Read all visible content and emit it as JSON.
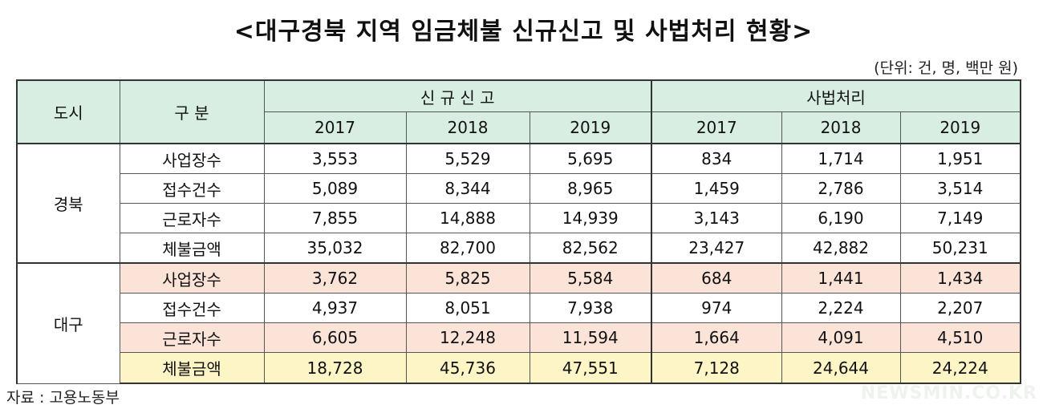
{
  "title": "<대구경북 지역 임금체불 신규신고 및 사법처리 현황>",
  "unit": "(단위: 건, 명, 백만 원)",
  "headers": {
    "city": "도시",
    "category": "구 분",
    "group_new": "신 규 신 고",
    "group_judicial": "사법처리",
    "years": [
      "2017",
      "2018",
      "2019",
      "2017",
      "2018",
      "2019"
    ]
  },
  "regions": [
    {
      "name": "경북",
      "rows": [
        {
          "label": "사업장수",
          "values": [
            "3,553",
            "5,529",
            "5,695",
            "834",
            "1,714",
            "1,951"
          ]
        },
        {
          "label": "접수건수",
          "values": [
            "5,089",
            "8,344",
            "8,965",
            "1,459",
            "2,786",
            "3,514"
          ]
        },
        {
          "label": "근로자수",
          "values": [
            "7,855",
            "14,888",
            "14,939",
            "3,143",
            "6,190",
            "7,149"
          ]
        },
        {
          "label": "체불금액",
          "values": [
            "35,032",
            "82,700",
            "82,562",
            "23,427",
            "42,882",
            "50,231"
          ]
        }
      ]
    },
    {
      "name": "대구",
      "rows": [
        {
          "label": "사업장수",
          "values": [
            "3,762",
            "5,825",
            "5,584",
            "684",
            "1,441",
            "1,434"
          ]
        },
        {
          "label": "접수건수",
          "values": [
            "4,937",
            "8,051",
            "7,938",
            "974",
            "2,224",
            "2,207"
          ]
        },
        {
          "label": "근로자수",
          "values": [
            "6,605",
            "12,248",
            "11,594",
            "1,664",
            "4,091",
            "4,510"
          ]
        },
        {
          "label": "체불금액",
          "values": [
            "18,728",
            "45,736",
            "47,551",
            "7,128",
            "24,644",
            "24,224"
          ]
        }
      ]
    }
  ],
  "source": "자료 : 고용노동부",
  "watermark": "NEWSMIN.CO.KR",
  "colors": {
    "header_bg": "#d9eee3",
    "highlight_pink": "#fbe3d8",
    "highlight_yellow": "#fdf5c6"
  }
}
